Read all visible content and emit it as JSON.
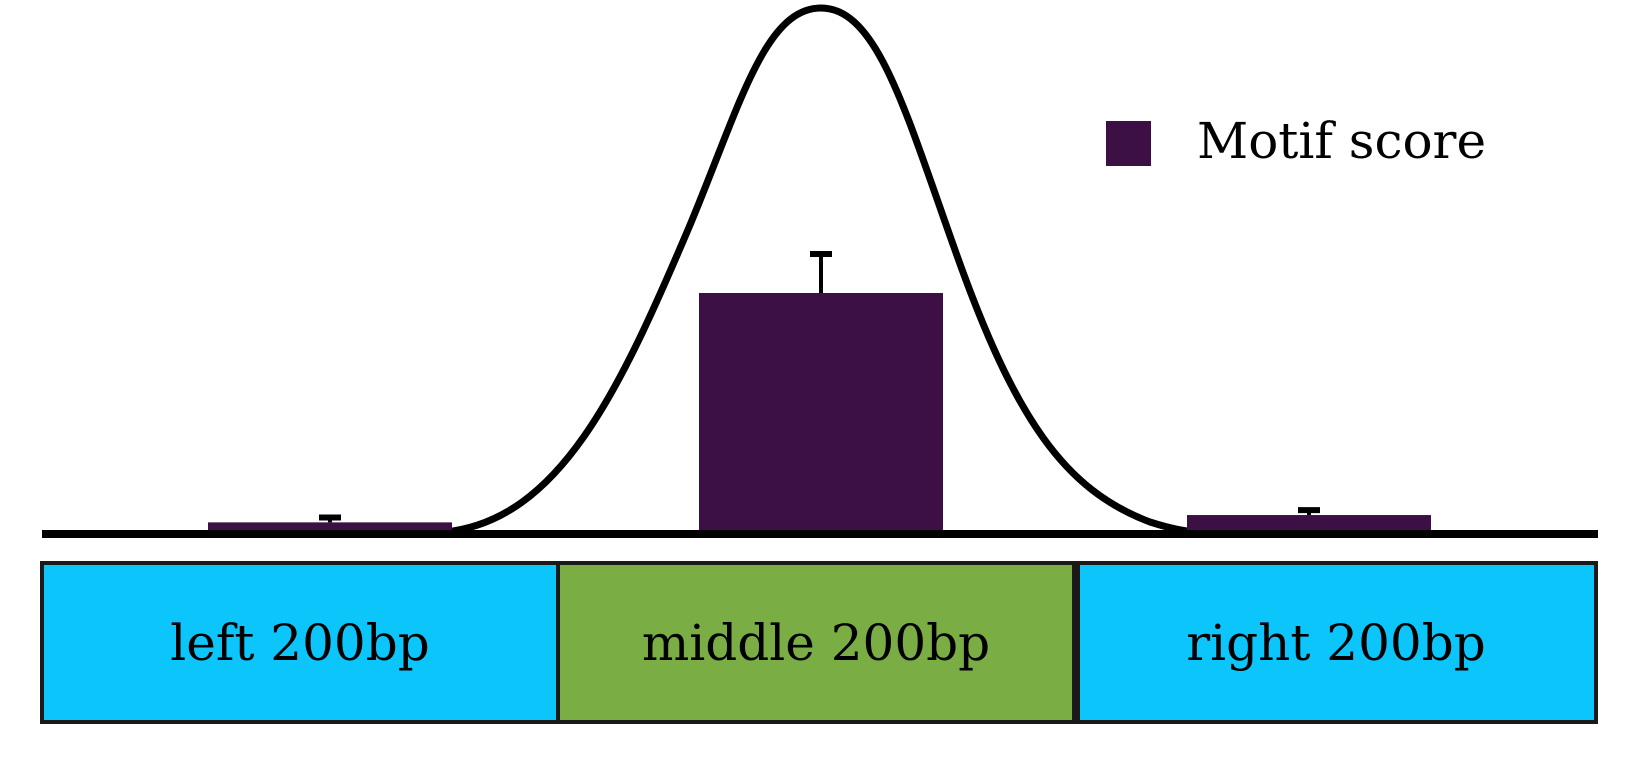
{
  "legend": {
    "label": "Motif score",
    "color": "#3d1045"
  },
  "regions": [
    {
      "label": "left 200bp",
      "color": "#0bc5fb"
    },
    {
      "label": "middle 200bp",
      "color": "#7aae45"
    },
    {
      "label": "right 200bp",
      "color": "#0bc5fb"
    }
  ],
  "chart_data": {
    "type": "bar",
    "categories": [
      "left 200bp",
      "middle 200bp",
      "right 200bp"
    ],
    "series": [
      {
        "name": "Motif score",
        "values": [
          0.06,
          1.0,
          0.09
        ],
        "error": [
          0.02,
          0.16,
          0.02
        ]
      }
    ],
    "value_scale": "relative",
    "overlay": "bell-shaped peak curve centred on the middle region"
  }
}
